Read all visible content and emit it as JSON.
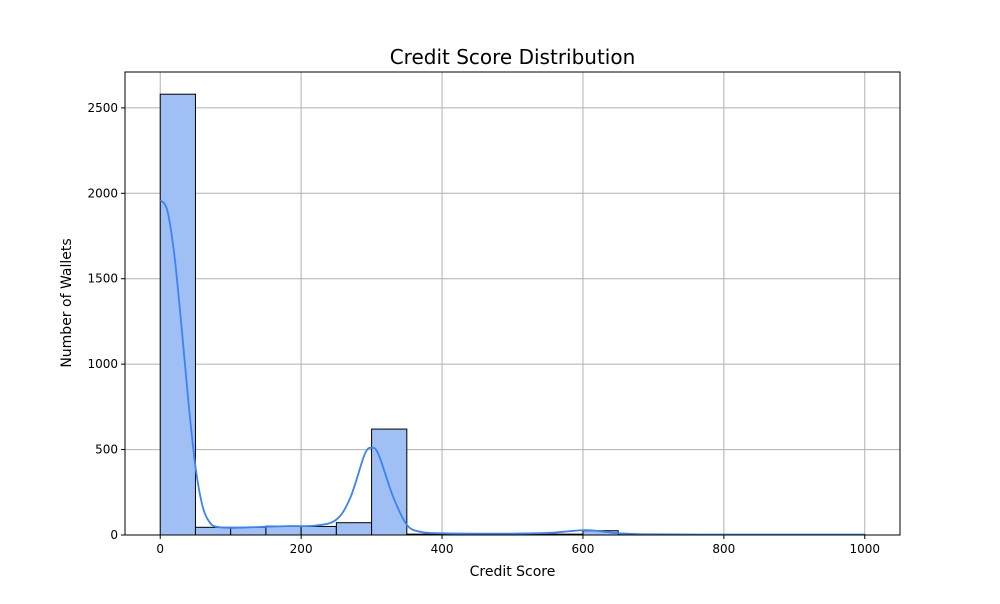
{
  "chart_data": {
    "type": "bar",
    "title": "Credit Score Distribution",
    "xlabel": "Credit Score",
    "ylabel": "Number of Wallets",
    "xlim": [
      -50,
      1050
    ],
    "ylim": [
      0,
      2710
    ],
    "xticks": [
      0,
      200,
      400,
      600,
      800,
      1000
    ],
    "yticks": [
      0,
      500,
      1000,
      1500,
      2000,
      2500
    ],
    "grid": true,
    "bin_width": 50,
    "bins": [
      {
        "start": 0,
        "end": 50,
        "value": 2580
      },
      {
        "start": 50,
        "end": 100,
        "value": 45
      },
      {
        "start": 100,
        "end": 150,
        "value": 45
      },
      {
        "start": 150,
        "end": 200,
        "value": 52
      },
      {
        "start": 200,
        "end": 250,
        "value": 50
      },
      {
        "start": 250,
        "end": 300,
        "value": 72
      },
      {
        "start": 300,
        "end": 350,
        "value": 620
      },
      {
        "start": 350,
        "end": 400,
        "value": 5
      },
      {
        "start": 400,
        "end": 450,
        "value": 3
      },
      {
        "start": 450,
        "end": 500,
        "value": 3
      },
      {
        "start": 500,
        "end": 550,
        "value": 3
      },
      {
        "start": 550,
        "end": 600,
        "value": 5
      },
      {
        "start": 600,
        "end": 650,
        "value": 25
      },
      {
        "start": 650,
        "end": 700,
        "value": 2
      },
      {
        "start": 700,
        "end": 750,
        "value": 2
      },
      {
        "start": 750,
        "end": 800,
        "value": 2
      },
      {
        "start": 800,
        "end": 850,
        "value": 2
      },
      {
        "start": 850,
        "end": 900,
        "value": 2
      },
      {
        "start": 900,
        "end": 950,
        "value": 2
      },
      {
        "start": 950,
        "end": 1000,
        "value": 2
      }
    ],
    "kde_curve": [
      {
        "x": 0,
        "y": 1960
      },
      {
        "x": 10,
        "y": 1900
      },
      {
        "x": 20,
        "y": 1640
      },
      {
        "x": 30,
        "y": 1230
      },
      {
        "x": 40,
        "y": 780
      },
      {
        "x": 50,
        "y": 400
      },
      {
        "x": 60,
        "y": 170
      },
      {
        "x": 70,
        "y": 75
      },
      {
        "x": 80,
        "y": 48
      },
      {
        "x": 100,
        "y": 42
      },
      {
        "x": 140,
        "y": 47
      },
      {
        "x": 180,
        "y": 52
      },
      {
        "x": 220,
        "y": 55
      },
      {
        "x": 250,
        "y": 90
      },
      {
        "x": 270,
        "y": 220
      },
      {
        "x": 290,
        "y": 470
      },
      {
        "x": 300,
        "y": 510
      },
      {
        "x": 310,
        "y": 470
      },
      {
        "x": 330,
        "y": 230
      },
      {
        "x": 350,
        "y": 60
      },
      {
        "x": 370,
        "y": 18
      },
      {
        "x": 400,
        "y": 10
      },
      {
        "x": 450,
        "y": 8
      },
      {
        "x": 500,
        "y": 8
      },
      {
        "x": 550,
        "y": 12
      },
      {
        "x": 580,
        "y": 22
      },
      {
        "x": 600,
        "y": 28
      },
      {
        "x": 620,
        "y": 24
      },
      {
        "x": 650,
        "y": 10
      },
      {
        "x": 700,
        "y": 4
      },
      {
        "x": 800,
        "y": 3
      },
      {
        "x": 900,
        "y": 3
      },
      {
        "x": 1000,
        "y": 3
      }
    ],
    "colors": {
      "bar_fill": "#a0c0f5",
      "bar_edge": "#000000",
      "kde_line": "#3b82f6",
      "grid": "#b0b0b0",
      "axes": "#000000"
    }
  }
}
